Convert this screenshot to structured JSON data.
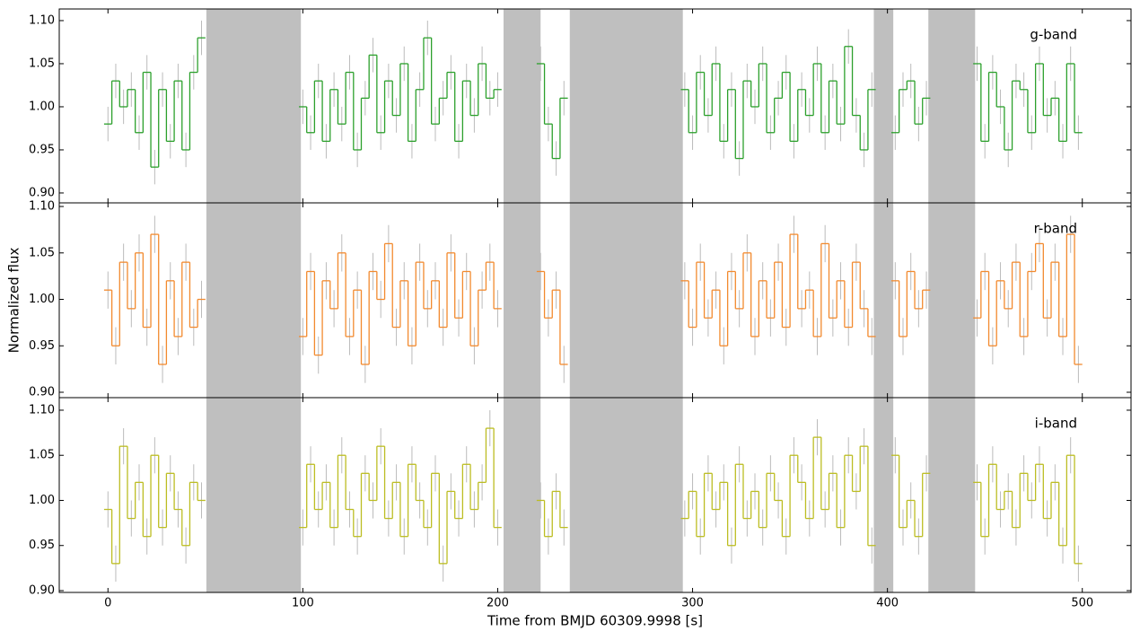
{
  "chart_data": [
    {
      "type": "step",
      "xlim": [
        -25,
        525
      ],
      "ylim": [
        0.8885,
        1.1135
      ],
      "xticks": [
        0,
        100,
        200,
        300,
        400,
        500
      ],
      "yticks": [
        {
          "value": 0.9,
          "label": "0.90"
        },
        0.95,
        {
          "value": 1.0,
          "label": "1.00"
        },
        1.05,
        {
          "value": 1.1,
          "label": "1.10"
        }
      ],
      "shaded_regions": [
        [
          50.5,
          99
        ],
        [
          203,
          222
        ],
        [
          237,
          295
        ],
        [
          393,
          403
        ],
        [
          421,
          445
        ]
      ],
      "shade_color": "#bfbfbf",
      "x": [
        0,
        4,
        8,
        12,
        16,
        20,
        24,
        28,
        32,
        36,
        40,
        44,
        48,
        75,
        100,
        104,
        108,
        112,
        116,
        120,
        124,
        128,
        132,
        136,
        140,
        144,
        148,
        152,
        156,
        160,
        164,
        168,
        172,
        176,
        180,
        184,
        188,
        192,
        196,
        200,
        212,
        222,
        226,
        230,
        234,
        266,
        296,
        300,
        304,
        308,
        312,
        316,
        320,
        324,
        328,
        332,
        336,
        340,
        344,
        348,
        352,
        356,
        360,
        364,
        368,
        372,
        376,
        380,
        384,
        388,
        392,
        398,
        404,
        408,
        412,
        416,
        420,
        433,
        446,
        450,
        454,
        458,
        462,
        466,
        470,
        474,
        478,
        482,
        486,
        490,
        494,
        498
      ],
      "series": [
        {
          "name": "g-band",
          "color": "#2ca02c",
          "yerr": 0.02,
          "error_color": "#bbbbbb",
          "values": [
            0.98,
            1.03,
            1.0,
            1.02,
            0.97,
            1.04,
            0.93,
            1.02,
            0.96,
            1.03,
            0.95,
            1.04,
            1.08,
            null,
            1.0,
            0.97,
            1.03,
            0.96,
            1.02,
            0.98,
            1.04,
            0.95,
            1.01,
            1.06,
            0.97,
            1.03,
            0.99,
            1.05,
            0.96,
            1.02,
            1.08,
            0.98,
            1.01,
            1.04,
            0.96,
            1.03,
            0.99,
            1.05,
            1.01,
            1.02,
            null,
            1.05,
            0.98,
            0.94,
            1.01,
            null,
            1.02,
            0.97,
            1.04,
            0.99,
            1.05,
            0.96,
            1.02,
            0.94,
            1.03,
            1.0,
            1.05,
            0.97,
            1.01,
            1.04,
            0.96,
            1.02,
            0.99,
            1.05,
            0.97,
            1.03,
            0.98,
            1.07,
            0.99,
            0.95,
            1.02,
            null,
            0.97,
            1.02,
            1.03,
            0.98,
            1.01,
            null,
            1.05,
            0.96,
            1.04,
            1.0,
            0.95,
            1.03,
            1.02,
            0.97,
            1.05,
            0.99,
            1.01,
            0.96,
            1.05,
            0.97
          ]
        }
      ]
    },
    {
      "type": "step",
      "xlim": [
        -25,
        525
      ],
      "ylim": [
        0.8942,
        1.1039
      ],
      "xticks": [
        0,
        100,
        200,
        300,
        400,
        500
      ],
      "yticks": [
        {
          "value": 0.9,
          "label": "0.90"
        },
        0.95,
        {
          "value": 1.0,
          "label": "1.00"
        },
        1.05,
        {
          "value": 1.1,
          "label": "1.10"
        }
      ],
      "ylabel": "Normalized flux",
      "shaded_regions": [
        [
          50.5,
          99
        ],
        [
          203,
          222
        ],
        [
          237,
          295
        ],
        [
          393,
          403
        ],
        [
          421,
          445
        ]
      ],
      "shade_color": "#bfbfbf",
      "x": [
        0,
        4,
        8,
        12,
        16,
        20,
        24,
        28,
        32,
        36,
        40,
        44,
        48,
        75,
        100,
        104,
        108,
        112,
        116,
        120,
        124,
        128,
        132,
        136,
        140,
        144,
        148,
        152,
        156,
        160,
        164,
        168,
        172,
        176,
        180,
        184,
        188,
        192,
        196,
        200,
        212,
        222,
        226,
        230,
        234,
        266,
        296,
        300,
        304,
        308,
        312,
        316,
        320,
        324,
        328,
        332,
        336,
        340,
        344,
        348,
        352,
        356,
        360,
        364,
        368,
        372,
        376,
        380,
        384,
        388,
        392,
        398,
        404,
        408,
        412,
        416,
        420,
        433,
        446,
        450,
        454,
        458,
        462,
        466,
        470,
        474,
        478,
        482,
        486,
        490,
        494,
        498
      ],
      "series": [
        {
          "name": "r-band",
          "color": "#f28a2e",
          "yerr": 0.02,
          "error_color": "#bbbbbb",
          "values": [
            1.01,
            0.95,
            1.04,
            0.99,
            1.05,
            0.97,
            1.07,
            0.93,
            1.02,
            0.96,
            1.04,
            0.97,
            1.0,
            null,
            0.96,
            1.03,
            0.94,
            1.02,
            0.99,
            1.05,
            0.96,
            1.01,
            0.93,
            1.03,
            1.0,
            1.06,
            0.97,
            1.02,
            0.95,
            1.04,
            0.99,
            1.02,
            0.97,
            1.05,
            0.98,
            1.03,
            0.95,
            1.01,
            1.04,
            0.99,
            null,
            1.03,
            0.98,
            1.01,
            0.93,
            null,
            1.02,
            0.97,
            1.04,
            0.98,
            1.01,
            0.95,
            1.03,
            0.99,
            1.05,
            0.96,
            1.02,
            0.98,
            1.04,
            0.97,
            1.07,
            0.99,
            1.01,
            0.96,
            1.06,
            0.98,
            1.02,
            0.97,
            1.04,
            0.99,
            0.96,
            null,
            1.02,
            0.96,
            1.03,
            0.99,
            1.01,
            null,
            0.98,
            1.03,
            0.95,
            1.02,
            0.99,
            1.04,
            0.96,
            1.03,
            1.06,
            0.98,
            1.04,
            0.96,
            1.07,
            0.93
          ]
        }
      ]
    },
    {
      "type": "step",
      "xlim": [
        -25,
        525
      ],
      "ylim": [
        0.898,
        1.1139
      ],
      "xticks": [
        0,
        100,
        200,
        300,
        400,
        500
      ],
      "yticks": [
        {
          "value": 0.9,
          "label": "0.90"
        },
        0.95,
        {
          "value": 1.0,
          "label": "1.00"
        },
        1.05,
        {
          "value": 1.1,
          "label": "1.10"
        }
      ],
      "xlabel": "Time from BMJD 60309.9998 [s]",
      "shaded_regions": [
        [
          50.5,
          99
        ],
        [
          203,
          222
        ],
        [
          237,
          295
        ],
        [
          393,
          403
        ],
        [
          421,
          445
        ]
      ],
      "shade_color": "#bfbfbf",
      "x": [
        0,
        4,
        8,
        12,
        16,
        20,
        24,
        28,
        32,
        36,
        40,
        44,
        48,
        75,
        100,
        104,
        108,
        112,
        116,
        120,
        124,
        128,
        132,
        136,
        140,
        144,
        148,
        152,
        156,
        160,
        164,
        168,
        172,
        176,
        180,
        184,
        188,
        192,
        196,
        200,
        212,
        222,
        226,
        230,
        234,
        266,
        296,
        300,
        304,
        308,
        312,
        316,
        320,
        324,
        328,
        332,
        336,
        340,
        344,
        348,
        352,
        356,
        360,
        364,
        368,
        372,
        376,
        380,
        384,
        388,
        392,
        398,
        404,
        408,
        412,
        416,
        420,
        433,
        446,
        450,
        454,
        458,
        462,
        466,
        470,
        474,
        478,
        482,
        486,
        490,
        494,
        498
      ],
      "series": [
        {
          "name": "i-band",
          "color": "#bcbd22",
          "yerr": 0.02,
          "error_color": "#bbbbbb",
          "values": [
            0.99,
            0.93,
            1.06,
            0.98,
            1.02,
            0.96,
            1.05,
            0.97,
            1.03,
            0.99,
            0.95,
            1.02,
            1.0,
            null,
            0.97,
            1.04,
            0.99,
            1.02,
            0.97,
            1.05,
            0.99,
            0.96,
            1.03,
            1.0,
            1.06,
            0.98,
            1.02,
            0.96,
            1.04,
            1.0,
            0.97,
            1.03,
            0.93,
            1.01,
            0.98,
            1.04,
            0.99,
            1.02,
            1.08,
            0.97,
            null,
            1.0,
            0.96,
            1.01,
            0.97,
            null,
            0.98,
            1.01,
            0.96,
            1.03,
            0.99,
            1.02,
            0.95,
            1.04,
            0.98,
            1.01,
            0.97,
            1.03,
            1.0,
            0.96,
            1.05,
            1.02,
            0.98,
            1.07,
            0.99,
            1.03,
            0.97,
            1.05,
            1.01,
            1.06,
            0.95,
            null,
            1.05,
            0.97,
            1.0,
            0.96,
            1.03,
            null,
            1.02,
            0.96,
            1.04,
            0.99,
            1.01,
            0.97,
            1.03,
            1.0,
            1.04,
            0.98,
            1.02,
            0.95,
            1.05,
            0.93
          ]
        }
      ]
    }
  ]
}
